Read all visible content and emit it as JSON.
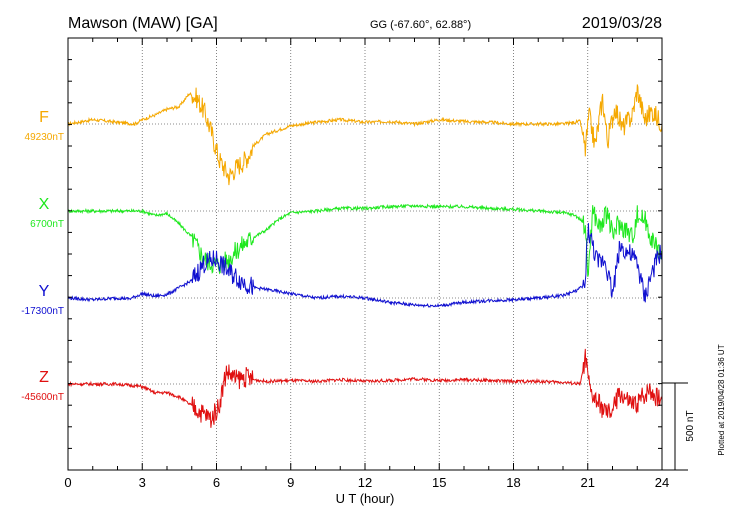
{
  "header": {
    "station": "Mawson (MAW)  [GA]",
    "coords": "GG (-67.60°,  62.88°)",
    "date": "2019/03/28"
  },
  "plotted_note": "Plotted at 2019/04/28 01:36 UT",
  "scale_label": "500 nT",
  "chart_data": {
    "type": "line",
    "xlabel": "U T (hour)",
    "xlim": [
      0,
      24
    ],
    "x_ticks": [
      "0",
      "3",
      "6",
      "9",
      "12",
      "15",
      "18",
      "21",
      "24"
    ],
    "grid": true,
    "colors": {
      "F": "#f5a800",
      "X": "#1ee81e",
      "Y": "#1010d0",
      "Z": "#e01010"
    },
    "series": [
      {
        "name": "F",
        "baseline_label": "49230nT",
        "color": "#f5a800",
        "points": [
          [
            0,
            0
          ],
          [
            1,
            5
          ],
          [
            2,
            2
          ],
          [
            2.7,
            0
          ],
          [
            3,
            5
          ],
          [
            3.5,
            10
          ],
          [
            4,
            17
          ],
          [
            4.5,
            20
          ],
          [
            4.9,
            35
          ],
          [
            5.2,
            30
          ],
          [
            5.5,
            15
          ],
          [
            5.8,
            -10
          ],
          [
            6.1,
            -40
          ],
          [
            6.5,
            -60
          ],
          [
            6.8,
            -50
          ],
          [
            7.2,
            -40
          ],
          [
            7.5,
            -25
          ],
          [
            8,
            -12
          ],
          [
            8.5,
            -7
          ],
          [
            9,
            -2
          ],
          [
            10,
            2
          ],
          [
            11,
            5
          ],
          [
            12,
            2
          ],
          [
            13,
            3
          ],
          [
            14,
            0
          ],
          [
            15,
            5
          ],
          [
            16,
            3
          ],
          [
            17,
            2
          ],
          [
            18,
            0
          ],
          [
            19,
            0
          ],
          [
            20,
            0
          ],
          [
            20.7,
            3
          ],
          [
            20.9,
            -30
          ],
          [
            21.05,
            10
          ],
          [
            21.3,
            -25
          ],
          [
            21.6,
            30
          ],
          [
            21.8,
            -20
          ],
          [
            22.1,
            20
          ],
          [
            22.4,
            -5
          ],
          [
            22.8,
            10
          ],
          [
            23.0,
            40
          ],
          [
            23.3,
            5
          ],
          [
            23.6,
            15
          ],
          [
            24,
            0
          ]
        ]
      },
      {
        "name": "X",
        "baseline_label": "6700nT",
        "color": "#1ee81e",
        "points": [
          [
            0,
            0
          ],
          [
            2,
            0
          ],
          [
            3,
            0
          ],
          [
            3.5,
            -5
          ],
          [
            4,
            -3
          ],
          [
            4.5,
            -15
          ],
          [
            5,
            -30
          ],
          [
            5.5,
            -55
          ],
          [
            5.8,
            -60
          ],
          [
            6.1,
            -62
          ],
          [
            6.5,
            -55
          ],
          [
            7,
            -40
          ],
          [
            7.5,
            -30
          ],
          [
            8,
            -22
          ],
          [
            8.5,
            -10
          ],
          [
            9,
            -2
          ],
          [
            10,
            0
          ],
          [
            11,
            3
          ],
          [
            12,
            3
          ],
          [
            13,
            5
          ],
          [
            14,
            6
          ],
          [
            15,
            5
          ],
          [
            16,
            5
          ],
          [
            17,
            3
          ],
          [
            18,
            2
          ],
          [
            19,
            0
          ],
          [
            20,
            -2
          ],
          [
            20.5,
            -5
          ],
          [
            20.9,
            -15
          ],
          [
            21,
            -75
          ],
          [
            21.2,
            0
          ],
          [
            21.5,
            -20
          ],
          [
            21.8,
            0
          ],
          [
            22,
            -30
          ],
          [
            22.2,
            -15
          ],
          [
            22.5,
            -20
          ],
          [
            22.8,
            -30
          ],
          [
            23,
            -5
          ],
          [
            23.3,
            -10
          ],
          [
            23.5,
            -25
          ],
          [
            23.7,
            -40
          ],
          [
            24,
            -50
          ]
        ]
      },
      {
        "name": "Y",
        "baseline_label": "-17300nT",
        "color": "#1010d0",
        "points": [
          [
            0,
            0
          ],
          [
            1,
            -2
          ],
          [
            2,
            0
          ],
          [
            2.5,
            -1
          ],
          [
            3,
            5
          ],
          [
            3.5,
            2
          ],
          [
            4,
            4
          ],
          [
            4.5,
            12
          ],
          [
            5,
            20
          ],
          [
            5.5,
            40
          ],
          [
            6,
            45
          ],
          [
            6.5,
            30
          ],
          [
            7,
            20
          ],
          [
            7.5,
            12
          ],
          [
            8,
            10
          ],
          [
            9,
            5
          ],
          [
            10,
            0
          ],
          [
            11,
            2
          ],
          [
            12,
            0
          ],
          [
            13,
            -5
          ],
          [
            14,
            -8
          ],
          [
            15,
            -9
          ],
          [
            16,
            -5
          ],
          [
            17,
            -3
          ],
          [
            18,
            -2
          ],
          [
            19,
            0
          ],
          [
            20,
            3
          ],
          [
            20.5,
            8
          ],
          [
            20.9,
            15
          ],
          [
            21,
            80
          ],
          [
            21.2,
            60
          ],
          [
            21.4,
            40
          ],
          [
            21.7,
            45
          ],
          [
            22,
            5
          ],
          [
            22.3,
            60
          ],
          [
            22.7,
            50
          ],
          [
            23,
            40
          ],
          [
            23.3,
            0
          ],
          [
            23.6,
            30
          ],
          [
            24,
            55
          ]
        ]
      },
      {
        "name": "Z",
        "baseline_label": "-45600nT",
        "color": "#e01010",
        "points": [
          [
            0,
            0
          ],
          [
            2,
            0
          ],
          [
            3,
            -3
          ],
          [
            3.5,
            -10
          ],
          [
            4,
            -10
          ],
          [
            4.5,
            -15
          ],
          [
            5,
            -25
          ],
          [
            5.5,
            -35
          ],
          [
            5.8,
            -40
          ],
          [
            6.1,
            -25
          ],
          [
            6.4,
            15
          ],
          [
            6.8,
            5
          ],
          [
            7.2,
            8
          ],
          [
            7.5,
            5
          ],
          [
            8,
            3
          ],
          [
            9,
            4
          ],
          [
            10,
            3
          ],
          [
            11,
            5
          ],
          [
            12,
            3
          ],
          [
            13,
            4
          ],
          [
            14,
            6
          ],
          [
            15,
            4
          ],
          [
            16,
            5
          ],
          [
            17,
            4
          ],
          [
            18,
            3
          ],
          [
            19,
            3
          ],
          [
            20,
            2
          ],
          [
            20.7,
            0
          ],
          [
            20.9,
            30
          ],
          [
            21.1,
            -10
          ],
          [
            21.5,
            -25
          ],
          [
            21.8,
            -35
          ],
          [
            22,
            -30
          ],
          [
            22.3,
            -10
          ],
          [
            22.6,
            -20
          ],
          [
            22.9,
            -25
          ],
          [
            23.2,
            -15
          ],
          [
            23.5,
            -5
          ],
          [
            23.8,
            -15
          ],
          [
            24,
            -18
          ]
        ]
      }
    ]
  }
}
